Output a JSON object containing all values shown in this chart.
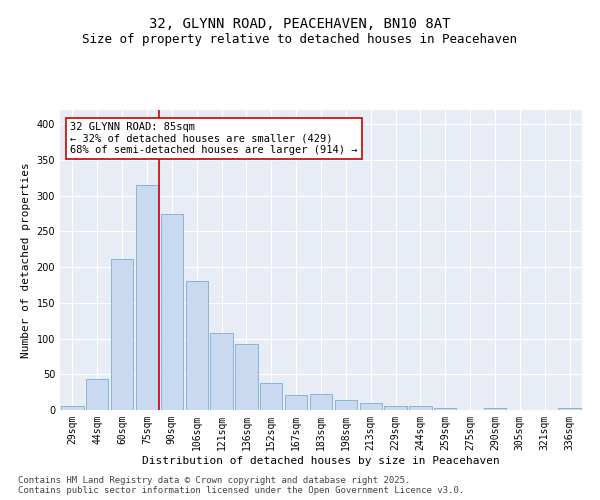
{
  "title_line1": "32, GLYNN ROAD, PEACEHAVEN, BN10 8AT",
  "title_line2": "Size of property relative to detached houses in Peacehaven",
  "xlabel": "Distribution of detached houses by size in Peacehaven",
  "ylabel": "Number of detached properties",
  "categories": [
    "29sqm",
    "44sqm",
    "60sqm",
    "75sqm",
    "90sqm",
    "106sqm",
    "121sqm",
    "136sqm",
    "152sqm",
    "167sqm",
    "183sqm",
    "198sqm",
    "213sqm",
    "229sqm",
    "244sqm",
    "259sqm",
    "275sqm",
    "290sqm",
    "305sqm",
    "321sqm",
    "336sqm"
  ],
  "values": [
    5,
    44,
    212,
    315,
    275,
    180,
    108,
    92,
    38,
    21,
    22,
    14,
    10,
    5,
    5,
    3,
    0,
    3,
    0,
    0,
    3
  ],
  "bar_color": "#c9d9f0",
  "bar_edge_color": "#7bacd4",
  "vline_color": "#cc0000",
  "vline_index": 3.5,
  "annotation_text": "32 GLYNN ROAD: 85sqm\n← 32% of detached houses are smaller (429)\n68% of semi-detached houses are larger (914) →",
  "annotation_box_color": "white",
  "annotation_box_edge_color": "#cc0000",
  "ylim": [
    0,
    420
  ],
  "yticks": [
    0,
    50,
    100,
    150,
    200,
    250,
    300,
    350,
    400
  ],
  "background_color": "#e8edf5",
  "grid_color": "white",
  "footer_line1": "Contains HM Land Registry data © Crown copyright and database right 2025.",
  "footer_line2": "Contains public sector information licensed under the Open Government Licence v3.0.",
  "title_fontsize": 10,
  "subtitle_fontsize": 9,
  "axis_label_fontsize": 8,
  "tick_fontsize": 7,
  "annotation_fontsize": 7.5,
  "footer_fontsize": 6.5
}
